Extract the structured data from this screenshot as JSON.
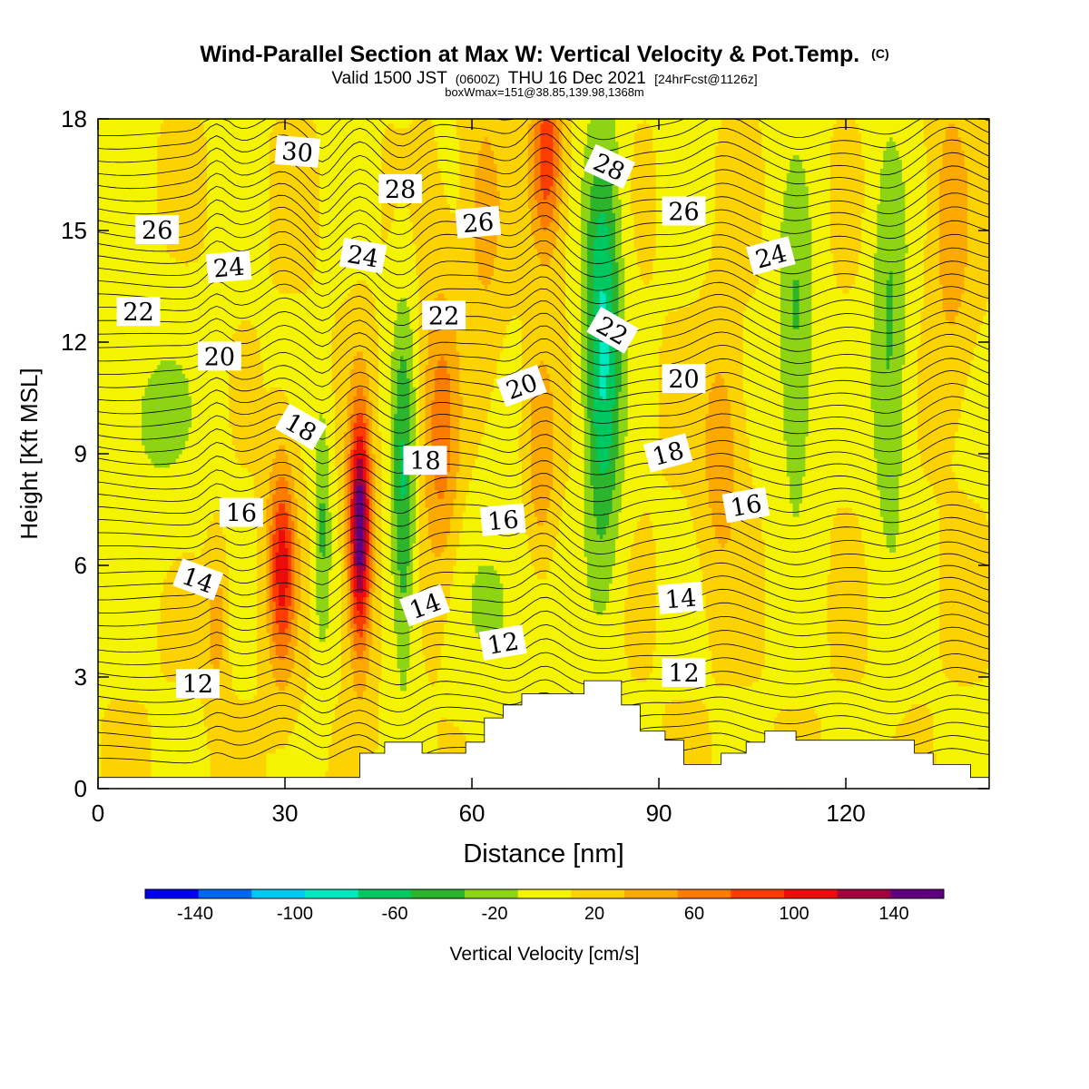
{
  "chart_data": {
    "type": "heatmap",
    "title": "Wind-Parallel Section at Max W: Vertical Velocity & Pot.Temp.",
    "title_mark": "(C)",
    "subtitle_main": "Valid 1500 JST",
    "subtitle_utc": "(0600Z)",
    "subtitle_date": "THU 16 Dec 2021",
    "subtitle_fcst": "[24hrFcst@1126z]",
    "subtitle_box": "boxWmax=151@38.85,139.98,1368m",
    "xlabel": "Distance [nm]",
    "ylabel": "Height [Kft MSL]",
    "xlim": [
      0,
      143
    ],
    "ylim": [
      0,
      18
    ],
    "xticks": [
      "0",
      "30",
      "60",
      "90",
      "120"
    ],
    "yticks": [
      "0",
      "3",
      "6",
      "9",
      "12",
      "15",
      "18"
    ],
    "colorbar": {
      "label": "Vertical Velocity [cm/s]",
      "ticks": [
        "-140",
        "-100",
        "-60",
        "-20",
        "20",
        "60",
        "100",
        "140"
      ],
      "bounds": [
        -160,
        160
      ],
      "colors": [
        "#0000ee",
        "#0068f0",
        "#00c8f4",
        "#00e8c0",
        "#00c860",
        "#2cb42c",
        "#8cd414",
        "#f4f400",
        "#fcd200",
        "#fcaa00",
        "#fc7c00",
        "#fc3c00",
        "#ec0c0c",
        "#a00040",
        "#600080"
      ]
    },
    "updrafts": [
      {
        "x": 29.5,
        "z": 6,
        "peak": 95,
        "wx": 2.2,
        "wz": 2.8
      },
      {
        "x": 42,
        "z": 7,
        "peak": 148,
        "wx": 1.8,
        "wz": 3.3
      },
      {
        "x": 55,
        "z": 9.5,
        "peak": 55,
        "wx": 3,
        "wz": 4
      },
      {
        "x": 72,
        "z": 17,
        "peak": 80,
        "wx": 2.5,
        "wz": 2.5
      },
      {
        "x": 71,
        "z": 9,
        "peak": 45,
        "wx": 2.5,
        "wz": 3
      },
      {
        "x": 100,
        "z": 9,
        "peak": 40,
        "wx": 3,
        "wz": 3
      },
      {
        "x": 19,
        "z": 4.5,
        "peak": 40,
        "wx": 1.5,
        "wz": 2
      },
      {
        "x": 62,
        "z": 15.5,
        "peak": 35,
        "wx": 3,
        "wz": 3
      },
      {
        "x": 137,
        "z": 15,
        "peak": 35,
        "wx": 3,
        "wz": 4
      }
    ],
    "downdrafts": [
      {
        "x": 36,
        "z": 7,
        "peak": -45,
        "wx": 1.4,
        "wz": 3.5
      },
      {
        "x": 49,
        "z": 8,
        "peak": -65,
        "wx": 2,
        "wz": 5
      },
      {
        "x": 81,
        "z": 12,
        "peak": -90,
        "wx": 3,
        "wz": 6
      },
      {
        "x": 112,
        "z": 12,
        "peak": -45,
        "wx": 3,
        "wz": 5
      },
      {
        "x": 127,
        "z": 12,
        "peak": -45,
        "wx": 3,
        "wz": 6
      },
      {
        "x": 8,
        "z": 10,
        "peak": -25,
        "wx": 10,
        "wz": 3
      },
      {
        "x": 65,
        "z": 5,
        "peak": -25,
        "wx": 8,
        "wz": 3
      }
    ],
    "theta_levels": [
      12,
      14,
      16,
      18,
      20,
      22,
      24,
      26,
      28,
      30
    ],
    "terrain": [
      [
        0,
        0.3
      ],
      [
        42,
        0.3
      ],
      [
        42,
        0.95
      ],
      [
        46,
        0.95
      ],
      [
        46,
        1.25
      ],
      [
        52,
        1.25
      ],
      [
        52,
        0.95
      ],
      [
        59,
        0.95
      ],
      [
        59,
        1.25
      ],
      [
        62,
        1.25
      ],
      [
        62,
        1.9
      ],
      [
        65,
        1.9
      ],
      [
        65,
        2.25
      ],
      [
        68,
        2.25
      ],
      [
        68,
        2.55
      ],
      [
        71,
        2.55
      ],
      [
        71,
        2.55
      ],
      [
        78,
        2.55
      ],
      [
        78,
        2.9
      ],
      [
        84,
        2.9
      ],
      [
        84,
        2.25
      ],
      [
        87,
        2.25
      ],
      [
        87,
        1.55
      ],
      [
        91,
        1.55
      ],
      [
        91,
        1.3
      ],
      [
        94,
        1.3
      ],
      [
        94,
        0.65
      ],
      [
        100,
        0.65
      ],
      [
        100,
        0.95
      ],
      [
        104,
        0.95
      ],
      [
        104,
        1.25
      ],
      [
        107,
        1.25
      ],
      [
        107,
        1.55
      ],
      [
        112,
        1.55
      ],
      [
        112,
        1.3
      ],
      [
        131,
        1.3
      ],
      [
        131,
        0.95
      ],
      [
        134,
        0.95
      ],
      [
        134,
        0.65
      ],
      [
        140,
        0.65
      ],
      [
        140,
        0.3
      ],
      [
        143,
        0.3
      ]
    ],
    "contour_labels": [
      {
        "text": "30",
        "x": 32,
        "z": 17.1,
        "rot": 5
      },
      {
        "text": "28",
        "x": 48.5,
        "z": 16.1,
        "rot": 0
      },
      {
        "text": "28",
        "x": 82,
        "z": 16.7,
        "rot": 25
      },
      {
        "text": "26",
        "x": 9.5,
        "z": 15.0,
        "rot": 0
      },
      {
        "text": "26",
        "x": 61,
        "z": 15.2,
        "rot": -5
      },
      {
        "text": "26",
        "x": 94,
        "z": 15.5,
        "rot": 0
      },
      {
        "text": "24",
        "x": 21,
        "z": 14.0,
        "rot": -5
      },
      {
        "text": "24",
        "x": 42.5,
        "z": 14.3,
        "rot": 10
      },
      {
        "text": "24",
        "x": 108,
        "z": 14.3,
        "rot": -15
      },
      {
        "text": "22",
        "x": 6.5,
        "z": 12.8,
        "rot": 0
      },
      {
        "text": "22",
        "x": 55.5,
        "z": 12.7,
        "rot": 0
      },
      {
        "text": "22",
        "x": 82.5,
        "z": 12.3,
        "rot": 30
      },
      {
        "text": "20",
        "x": 19.5,
        "z": 11.6,
        "rot": 0
      },
      {
        "text": "20",
        "x": 68,
        "z": 10.8,
        "rot": -20
      },
      {
        "text": "20",
        "x": 94,
        "z": 11.0,
        "rot": 0
      },
      {
        "text": "18",
        "x": 32.5,
        "z": 9.7,
        "rot": 30
      },
      {
        "text": "18",
        "x": 52.5,
        "z": 8.8,
        "rot": 0
      },
      {
        "text": "18",
        "x": 91.5,
        "z": 9.0,
        "rot": -15
      },
      {
        "text": "16",
        "x": 23,
        "z": 7.4,
        "rot": 0
      },
      {
        "text": "16",
        "x": 65,
        "z": 7.2,
        "rot": -5
      },
      {
        "text": "16",
        "x": 104,
        "z": 7.6,
        "rot": -10
      },
      {
        "text": "14",
        "x": 16,
        "z": 5.6,
        "rot": 20
      },
      {
        "text": "14",
        "x": 52.5,
        "z": 4.9,
        "rot": -20
      },
      {
        "text": "14",
        "x": 93.5,
        "z": 5.1,
        "rot": -5
      },
      {
        "text": "12",
        "x": 16,
        "z": 2.8,
        "rot": 0
      },
      {
        "text": "12",
        "x": 65,
        "z": 3.9,
        "rot": -10
      },
      {
        "text": "12",
        "x": 94,
        "z": 3.1,
        "rot": 0
      }
    ]
  }
}
